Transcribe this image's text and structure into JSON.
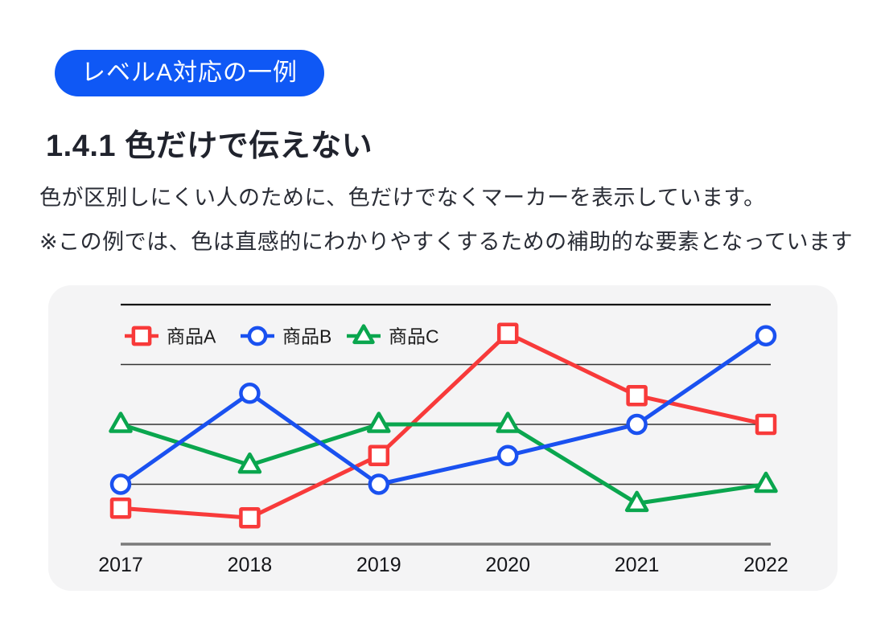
{
  "badge": {
    "label": "レベルA対応の一例",
    "bg_color": "#0f58f5",
    "text_color": "#ffffff"
  },
  "heading": "1.4.1 色だけで伝えない",
  "description": {
    "line1": "色が区別しにくい人のために、色だけでなくマーカーを表示しています。",
    "line2": "※この例では、色は直感的にわかりやすくするための補助的な要素となっています"
  },
  "chart_data": {
    "type": "line",
    "categories": [
      "2017",
      "2018",
      "2019",
      "2020",
      "2021",
      "2022"
    ],
    "series": [
      {
        "name": "商品A",
        "marker": "square",
        "color": "#f83a3a",
        "values": [
          15,
          11,
          37,
          88,
          62,
          50
        ]
      },
      {
        "name": "商品B",
        "marker": "circle",
        "color": "#1a51f0",
        "values": [
          25,
          63,
          25,
          37,
          50,
          87
        ]
      },
      {
        "name": "商品C",
        "marker": "triangle",
        "color": "#0aa64e",
        "values": [
          50,
          33,
          50,
          50,
          17,
          25
        ]
      }
    ],
    "draw_order": [
      0,
      2,
      1
    ],
    "ylim": [
      0,
      100
    ],
    "gridlines": [
      0,
      25,
      50,
      75,
      100
    ],
    "grid": true,
    "legend_position": "top-left",
    "panel_bg": "#f4f4f5",
    "axis_colors": {
      "top_line": "#141414",
      "grid_line": "#333333",
      "bottom_line": "#7a7a7a",
      "tick_label": "#15161a",
      "legend_label": "#1a1a1a"
    }
  }
}
